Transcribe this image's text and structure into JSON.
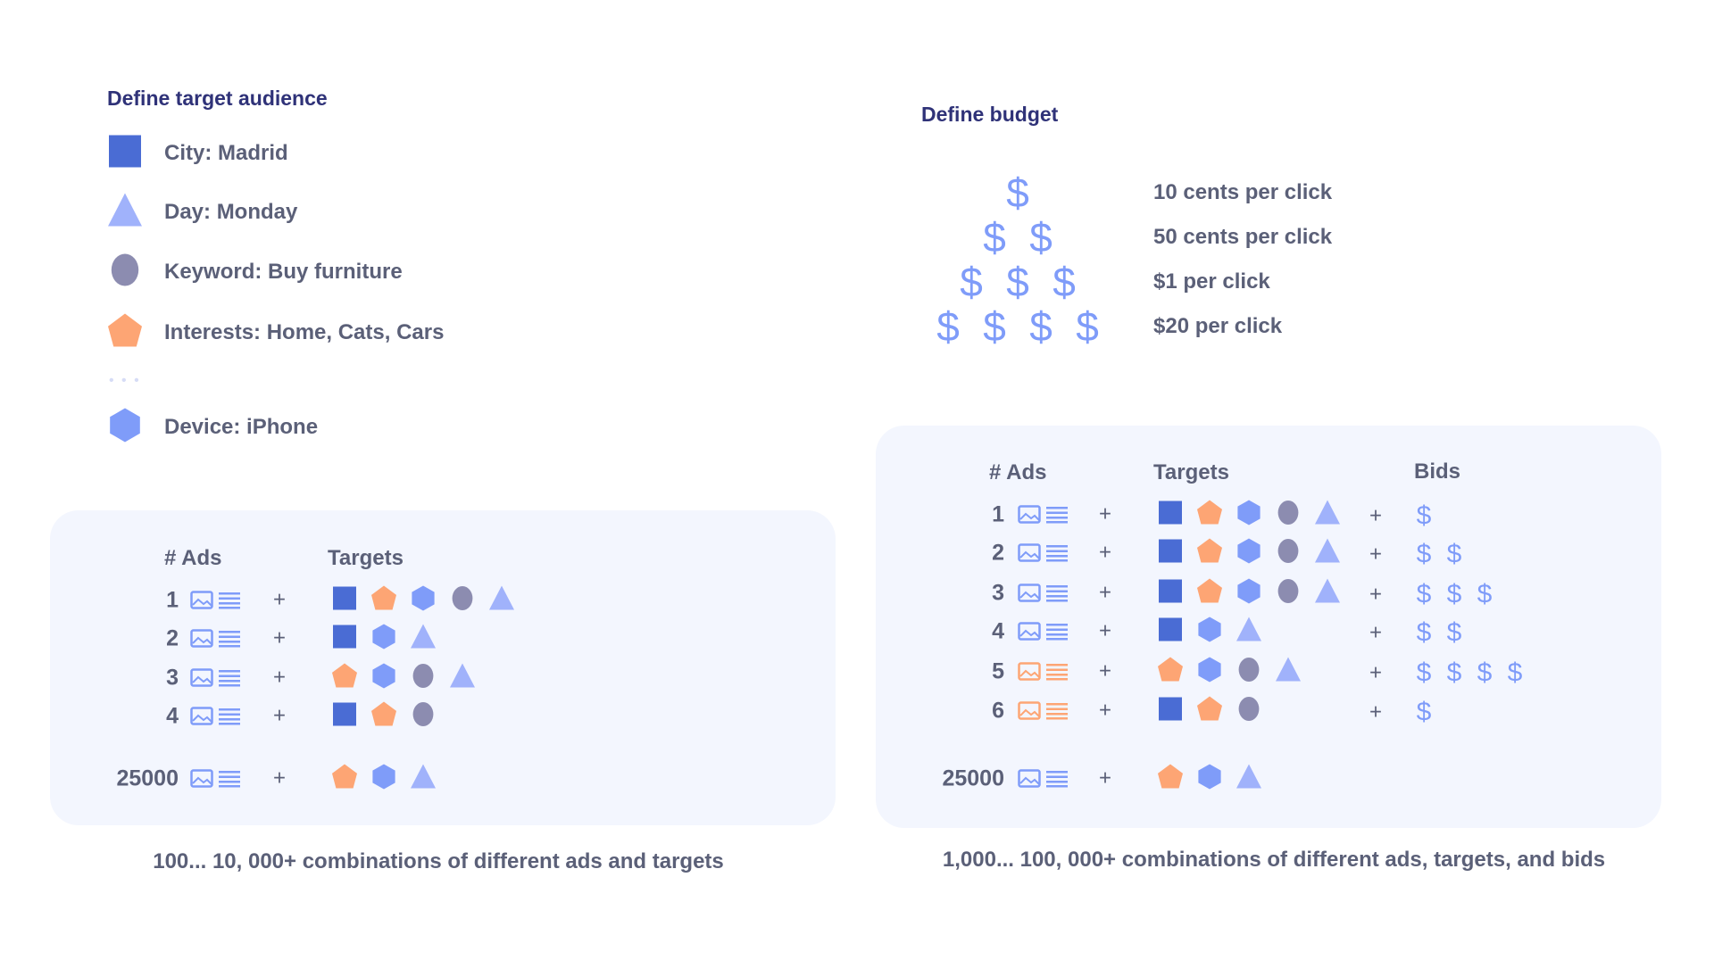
{
  "colors": {
    "square": "#4a6cd4",
    "triangle": "#a0b2fb",
    "circle": "#8c8cb0",
    "pentagon": "#fda574",
    "hexagon": "#7f9cf9",
    "dollar": "#7f9cf9",
    "ad_blue": "#7f9cf9",
    "ad_orange": "#fda574",
    "panel_bg": "#f3f6fe",
    "title": "#2f3278",
    "text": "#5b6078"
  },
  "audience": {
    "title": "Define target audience",
    "items": [
      {
        "shape": "square",
        "label": "City: Madrid"
      },
      {
        "shape": "triangle",
        "label": "Day: Monday"
      },
      {
        "shape": "circle",
        "label": "Keyword: Buy furniture"
      },
      {
        "shape": "pentagon",
        "label": "Interests: Home, Cats, Cars"
      },
      {
        "shape": "hexagon",
        "label": "Device: iPhone"
      }
    ],
    "ellipsis": "• • •"
  },
  "budget": {
    "title": "Define budget",
    "symbol": "$",
    "rows": [
      {
        "dollars": 1,
        "label": "10 cents per click"
      },
      {
        "dollars": 2,
        "label": "50 cents per click"
      },
      {
        "dollars": 3,
        "label": "$1 per click"
      },
      {
        "dollars": 4,
        "label": "$20 per click"
      }
    ]
  },
  "left_table": {
    "headers": {
      "ads": "# Ads",
      "targets": "Targets"
    },
    "plus": "+",
    "rows": [
      {
        "num": "1",
        "ad_color": "blue",
        "targets": [
          "square",
          "pentagon",
          "hexagon",
          "circle",
          "triangle"
        ]
      },
      {
        "num": "2",
        "ad_color": "blue",
        "targets": [
          "square",
          "hexagon",
          "triangle"
        ]
      },
      {
        "num": "3",
        "ad_color": "blue",
        "targets": [
          "pentagon",
          "hexagon",
          "circle",
          "triangle"
        ]
      },
      {
        "num": "4",
        "ad_color": "blue",
        "targets": [
          "square",
          "pentagon",
          "circle"
        ]
      },
      {
        "num": "25000",
        "ad_color": "blue",
        "targets": [
          "pentagon",
          "hexagon",
          "triangle"
        ]
      }
    ],
    "footer": "100... 10, 000+ combinations of different ads and targets"
  },
  "right_table": {
    "headers": {
      "ads": "# Ads",
      "targets": "Targets",
      "bids": "Bids"
    },
    "plus": "+",
    "symbol": "$",
    "rows": [
      {
        "num": "1",
        "ad_color": "blue",
        "targets": [
          "square",
          "pentagon",
          "hexagon",
          "circle",
          "triangle"
        ],
        "bids": 1
      },
      {
        "num": "2",
        "ad_color": "blue",
        "targets": [
          "square",
          "pentagon",
          "hexagon",
          "circle",
          "triangle"
        ],
        "bids": 2
      },
      {
        "num": "3",
        "ad_color": "blue",
        "targets": [
          "square",
          "pentagon",
          "hexagon",
          "circle",
          "triangle"
        ],
        "bids": 3
      },
      {
        "num": "4",
        "ad_color": "blue",
        "targets": [
          "square",
          "hexagon",
          "triangle"
        ],
        "bids": 2
      },
      {
        "num": "5",
        "ad_color": "orange",
        "targets": [
          "pentagon",
          "hexagon",
          "circle",
          "triangle"
        ],
        "bids": 4
      },
      {
        "num": "6",
        "ad_color": "orange",
        "targets": [
          "square",
          "pentagon",
          "circle"
        ],
        "bids": 1
      },
      {
        "num": "25000",
        "ad_color": "blue",
        "targets": [
          "pentagon",
          "hexagon",
          "triangle"
        ],
        "bids": 0
      }
    ],
    "footer": "1,000... 100, 000+ combinations of different ads, targets, and bids"
  }
}
